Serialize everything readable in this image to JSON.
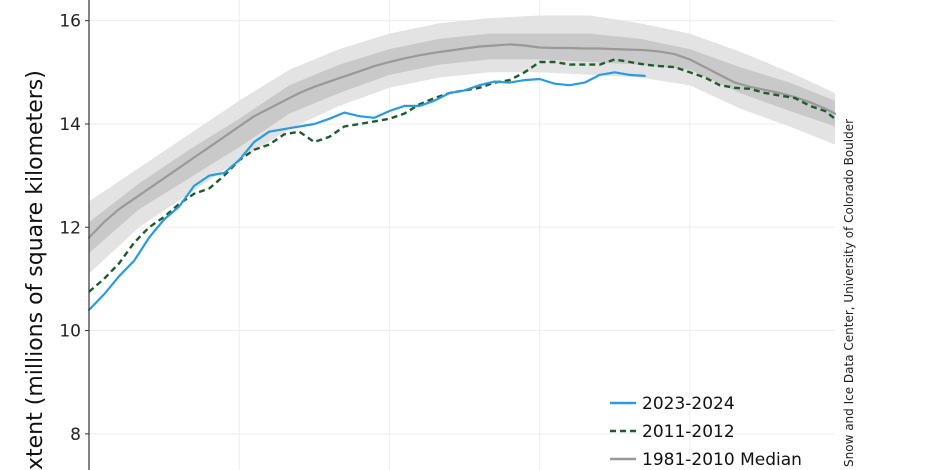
{
  "chart_data": {
    "type": "line",
    "ylabel": "Extent (millions of square kilometers)",
    "ylabel_visible": "xtent (millions of square kilometers)",
    "credit": "National Snow and Ice Data Center, University of Colorado Boulder",
    "credit_visible": "Snow and Ice Data Center, University of Colorado Boulder",
    "ylim": [
      7.3,
      16.4
    ],
    "xlim": [
      0,
      149
    ],
    "y_ticks": [
      8,
      10,
      12,
      14,
      16
    ],
    "grid": true,
    "legend_position": "bottom-right",
    "band_outer_color": "#e3e3e3",
    "band_inner_color": "#c9c9c9",
    "series": [
      {
        "name": "2023-2024",
        "color": "#2b9ae0",
        "style": "solid",
        "x": [
          0,
          3,
          6,
          9,
          12,
          15,
          18,
          21,
          24,
          27,
          30,
          33,
          36,
          39,
          42,
          45,
          48,
          51,
          54,
          57,
          60,
          63,
          66,
          69,
          72,
          75,
          78,
          81,
          84,
          87,
          90,
          93,
          96,
          99,
          102,
          105,
          108,
          111,
          114,
          117,
          120,
          123
        ],
        "y": [
          10.4,
          10.7,
          11.05,
          11.35,
          11.8,
          12.15,
          12.4,
          12.8,
          13.0,
          13.05,
          13.3,
          13.65,
          13.85,
          13.9,
          13.95,
          14.0,
          14.1,
          14.22,
          14.15,
          14.12,
          14.25,
          14.35,
          14.35,
          14.45,
          14.6,
          14.65,
          14.75,
          14.82,
          14.8,
          14.85,
          14.87,
          14.78,
          14.75,
          14.8,
          14.95,
          15.0,
          14.95,
          14.93,
          null,
          null,
          null,
          null
        ]
      },
      {
        "name": "2011-2012",
        "color": "#1d5c2e",
        "style": "dashed",
        "x": [
          0,
          3,
          6,
          9,
          12,
          15,
          18,
          21,
          24,
          27,
          30,
          33,
          36,
          39,
          42,
          45,
          48,
          51,
          54,
          57,
          60,
          63,
          66,
          69,
          72,
          75,
          78,
          81,
          84,
          87,
          90,
          93,
          96,
          99,
          102,
          105,
          108,
          111,
          114,
          117,
          120,
          123,
          126,
          129,
          132,
          135,
          138,
          141,
          144,
          147,
          149
        ],
        "y": [
          10.75,
          11.0,
          11.3,
          11.7,
          12.0,
          12.2,
          12.45,
          12.65,
          12.75,
          13.0,
          13.3,
          13.5,
          13.6,
          13.8,
          13.85,
          13.65,
          13.75,
          13.95,
          14.0,
          14.05,
          14.1,
          14.2,
          14.38,
          14.5,
          14.6,
          14.65,
          14.7,
          14.8,
          14.85,
          15.0,
          15.2,
          15.2,
          15.15,
          15.15,
          15.15,
          15.25,
          15.2,
          15.15,
          15.12,
          15.1,
          15.0,
          14.9,
          14.75,
          14.7,
          14.68,
          14.6,
          14.55,
          14.5,
          14.35,
          14.25,
          14.1
        ]
      },
      {
        "name": "1981-2010 Median",
        "color": "#999999",
        "style": "solid",
        "x": [
          0,
          3,
          6,
          9,
          12,
          15,
          18,
          21,
          24,
          27,
          30,
          33,
          36,
          39,
          42,
          45,
          48,
          51,
          54,
          57,
          60,
          63,
          66,
          69,
          72,
          75,
          78,
          81,
          84,
          87,
          90,
          93,
          96,
          99,
          102,
          105,
          108,
          111,
          114,
          117,
          120,
          123,
          126,
          129,
          132,
          135,
          138,
          141,
          144,
          147,
          149
        ],
        "y": [
          11.8,
          12.1,
          12.35,
          12.55,
          12.75,
          12.95,
          13.15,
          13.35,
          13.55,
          13.75,
          13.95,
          14.15,
          14.3,
          14.45,
          14.6,
          14.72,
          14.82,
          14.92,
          15.02,
          15.12,
          15.2,
          15.27,
          15.33,
          15.38,
          15.42,
          15.46,
          15.5,
          15.52,
          15.54,
          15.52,
          15.48,
          15.47,
          15.47,
          15.46,
          15.46,
          15.45,
          15.44,
          15.43,
          15.4,
          15.35,
          15.25,
          15.1,
          14.95,
          14.8,
          14.72,
          14.66,
          14.6,
          14.52,
          14.42,
          14.3,
          14.2
        ]
      }
    ],
    "band_x": [
      0,
      10,
      20,
      30,
      40,
      50,
      60,
      70,
      80,
      90,
      100,
      110,
      120,
      130,
      140,
      149
    ],
    "band_inner_upper": [
      12.1,
      12.85,
      13.5,
      14.1,
      14.75,
      15.15,
      15.45,
      15.65,
      15.75,
      15.75,
      15.75,
      15.65,
      15.45,
      15.1,
      14.8,
      14.45
    ],
    "band_inner_lower": [
      11.5,
      12.35,
      12.95,
      13.55,
      14.2,
      14.6,
      14.95,
      15.15,
      15.25,
      15.25,
      15.2,
      15.15,
      15.05,
      14.6,
      14.25,
      13.95
    ],
    "band_outer_upper": [
      12.5,
      13.15,
      13.8,
      14.45,
      15.05,
      15.45,
      15.75,
      15.95,
      16.05,
      16.1,
      16.1,
      15.95,
      15.75,
      15.4,
      15.0,
      14.6
    ],
    "band_outer_lower": [
      11.1,
      12.0,
      12.65,
      13.3,
      13.9,
      14.35,
      14.7,
      14.9,
      15.0,
      15.0,
      14.95,
      14.9,
      14.75,
      14.3,
      13.95,
      13.6
    ]
  }
}
